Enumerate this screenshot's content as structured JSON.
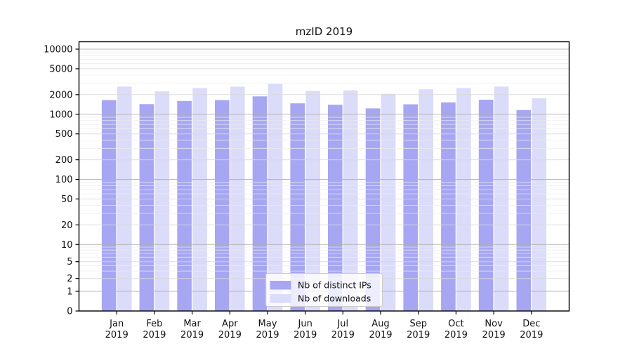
{
  "title": "mzID 2019",
  "chart_data": {
    "type": "bar",
    "title": "mzID 2019",
    "categories": [
      "Jan",
      "Feb",
      "Mar",
      "Apr",
      "May",
      "Jun",
      "Jul",
      "Aug",
      "Sep",
      "Oct",
      "Nov",
      "Dec"
    ],
    "category_year": "2019",
    "series": [
      {
        "name": "Nb of distinct IPs",
        "color": "#a6a6f3",
        "values": [
          1650,
          1430,
          1600,
          1650,
          1880,
          1470,
          1400,
          1230,
          1420,
          1520,
          1670,
          1160
        ]
      },
      {
        "name": "Nb of downloads",
        "color": "#dbdbfa",
        "values": [
          2660,
          2250,
          2530,
          2650,
          2920,
          2290,
          2330,
          2060,
          2420,
          2530,
          2660,
          1760
        ]
      }
    ],
    "xlabel": "",
    "ylabel": "",
    "yscale": "symlog",
    "ylim": [
      0,
      10000
    ],
    "y_ticks": [
      0,
      1,
      2,
      5,
      10,
      20,
      50,
      100,
      200,
      500,
      1000,
      2000,
      5000,
      10000
    ],
    "grid": true,
    "legend_position": "lower center"
  },
  "colors": {
    "bar_distinct_ips": "#a6a6f3",
    "bar_downloads": "#dbdbfa",
    "grid_major": "#b0b0b0",
    "grid_mid": "#d9d9d9",
    "grid_minor": "#ececec",
    "axis": "#000000",
    "legend_border": "#cccccc",
    "background": "#ffffff"
  }
}
